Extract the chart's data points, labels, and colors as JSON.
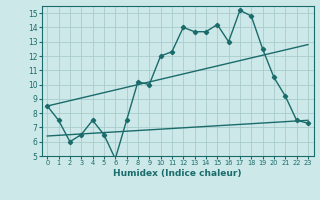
{
  "xlabel": "Humidex (Indice chaleur)",
  "xlim": [
    -0.5,
    23.5
  ],
  "ylim": [
    5,
    15.5
  ],
  "yticks": [
    5,
    6,
    7,
    8,
    9,
    10,
    11,
    12,
    13,
    14,
    15
  ],
  "xticks": [
    0,
    1,
    2,
    3,
    4,
    5,
    6,
    7,
    8,
    9,
    10,
    11,
    12,
    13,
    14,
    15,
    16,
    17,
    18,
    19,
    20,
    21,
    22,
    23
  ],
  "bg_color": "#cde8e8",
  "grid_color": "#aacccc",
  "line_color": "#1a6b6b",
  "main_x": [
    0,
    1,
    2,
    3,
    4,
    5,
    6,
    7,
    8,
    9,
    10,
    11,
    12,
    13,
    14,
    15,
    16,
    17,
    18,
    19,
    20,
    21,
    22,
    23
  ],
  "main_y": [
    8.5,
    7.5,
    6.0,
    6.5,
    7.5,
    6.5,
    4.8,
    7.5,
    10.2,
    10.0,
    12.0,
    12.3,
    14.0,
    13.7,
    13.7,
    14.2,
    13.0,
    15.2,
    14.8,
    12.5,
    10.5,
    9.2,
    7.5,
    7.3
  ],
  "trend1_x": [
    0,
    23
  ],
  "trend1_y": [
    8.5,
    12.8
  ],
  "trend2_x": [
    0,
    23
  ],
  "trend2_y": [
    6.4,
    7.5
  ]
}
